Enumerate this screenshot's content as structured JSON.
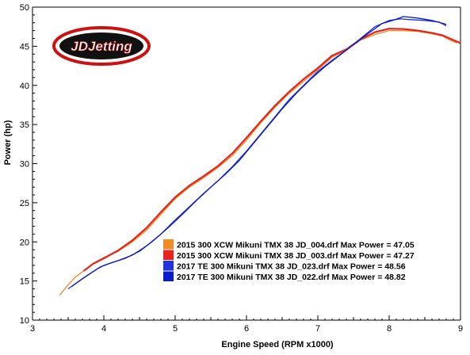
{
  "chart_data": {
    "type": "line",
    "title": "",
    "xlabel": "Engine Speed (RPM x1000)",
    "ylabel": "Power (hp)",
    "xlim": [
      3,
      9
    ],
    "ylim": [
      10,
      50
    ],
    "x_ticks": [
      "3",
      "4",
      "5",
      "6",
      "7",
      "8",
      "9"
    ],
    "y_ticks": [
      "10",
      "15",
      "20",
      "25",
      "30",
      "35",
      "40",
      "45",
      "50"
    ],
    "grid": false,
    "legend_position": "bottom-center",
    "logo_text": "JDJetting",
    "series": [
      {
        "name": "2015 300 XCW Mikuni TMX 38 JD_004.drf Max Power = 47.05",
        "color": "#f08a24",
        "points": [
          [
            3.38,
            13.2
          ],
          [
            3.5,
            14.5
          ],
          [
            3.6,
            15.5
          ],
          [
            3.75,
            16.5
          ],
          [
            3.9,
            17.5
          ],
          [
            4.0,
            18.0
          ],
          [
            4.2,
            18.8
          ],
          [
            4.4,
            20.0
          ],
          [
            4.6,
            21.5
          ],
          [
            4.8,
            23.5
          ],
          [
            5.0,
            25.5
          ],
          [
            5.2,
            27.0
          ],
          [
            5.4,
            28.2
          ],
          [
            5.6,
            29.5
          ],
          [
            5.8,
            31.0
          ],
          [
            6.0,
            33.0
          ],
          [
            6.2,
            35.2
          ],
          [
            6.4,
            37.2
          ],
          [
            6.6,
            39.0
          ],
          [
            6.8,
            40.5
          ],
          [
            7.0,
            42.0
          ],
          [
            7.2,
            43.6
          ],
          [
            7.4,
            44.5
          ],
          [
            7.6,
            45.8
          ],
          [
            7.8,
            46.5
          ],
          [
            8.0,
            47.0
          ],
          [
            8.2,
            47.0
          ],
          [
            8.4,
            46.9
          ],
          [
            8.6,
            46.6
          ],
          [
            8.75,
            46.3
          ],
          [
            8.85,
            45.8
          ],
          [
            8.95,
            45.4
          ]
        ]
      },
      {
        "name": "2015 300 XCW Mikuni TMX 38 JD_003.drf Max Power = 47.27",
        "color": "#e8231c",
        "points": [
          [
            3.72,
            16.3
          ],
          [
            3.85,
            17.2
          ],
          [
            4.0,
            17.9
          ],
          [
            4.2,
            18.9
          ],
          [
            4.4,
            20.2
          ],
          [
            4.6,
            21.8
          ],
          [
            4.8,
            23.8
          ],
          [
            5.0,
            25.7
          ],
          [
            5.2,
            27.2
          ],
          [
            5.4,
            28.4
          ],
          [
            5.6,
            29.7
          ],
          [
            5.8,
            31.3
          ],
          [
            6.0,
            33.3
          ],
          [
            6.2,
            35.4
          ],
          [
            6.4,
            37.4
          ],
          [
            6.6,
            39.2
          ],
          [
            6.8,
            40.8
          ],
          [
            7.0,
            42.2
          ],
          [
            7.2,
            43.8
          ],
          [
            7.4,
            44.6
          ],
          [
            7.6,
            45.9
          ],
          [
            7.8,
            46.8
          ],
          [
            8.0,
            47.25
          ],
          [
            8.2,
            47.2
          ],
          [
            8.4,
            47.0
          ],
          [
            8.6,
            46.7
          ],
          [
            8.75,
            46.4
          ],
          [
            8.9,
            45.8
          ],
          [
            9.0,
            45.4
          ]
        ]
      },
      {
        "name": "2017 TE 300 Mikuni TMX 38 JD_023.drf Max Power = 48.56",
        "color": "#2233dd",
        "points": [
          [
            3.5,
            14.0
          ],
          [
            3.7,
            15.3
          ],
          [
            3.9,
            16.5
          ],
          [
            4.0,
            17.0
          ],
          [
            4.2,
            17.6
          ],
          [
            4.4,
            18.3
          ],
          [
            4.6,
            19.5
          ],
          [
            4.8,
            21.0
          ],
          [
            5.0,
            22.8
          ],
          [
            5.2,
            24.5
          ],
          [
            5.4,
            26.2
          ],
          [
            5.6,
            27.8
          ],
          [
            5.8,
            29.6
          ],
          [
            6.0,
            31.6
          ],
          [
            6.2,
            33.8
          ],
          [
            6.4,
            36.0
          ],
          [
            6.6,
            38.2
          ],
          [
            6.8,
            40.0
          ],
          [
            7.0,
            41.8
          ],
          [
            7.2,
            43.2
          ],
          [
            7.4,
            44.5
          ],
          [
            7.6,
            46.0
          ],
          [
            7.8,
            47.5
          ],
          [
            8.0,
            48.3
          ],
          [
            8.15,
            48.5
          ],
          [
            8.3,
            48.4
          ],
          [
            8.5,
            48.3
          ],
          [
            8.7,
            48.1
          ],
          [
            8.8,
            47.6
          ]
        ]
      },
      {
        "name": "2017 TE 300 Mikuni TMX 38 JD_022.drf Max Power = 48.82",
        "color": "#0a1acc",
        "points": [
          [
            3.55,
            14.3
          ],
          [
            3.75,
            15.6
          ],
          [
            3.95,
            16.8
          ],
          [
            4.1,
            17.3
          ],
          [
            4.3,
            17.9
          ],
          [
            4.5,
            18.8
          ],
          [
            4.7,
            20.2
          ],
          [
            4.9,
            21.8
          ],
          [
            5.1,
            23.5
          ],
          [
            5.3,
            25.3
          ],
          [
            5.5,
            27.0
          ],
          [
            5.7,
            28.6
          ],
          [
            5.9,
            30.4
          ],
          [
            6.1,
            32.6
          ],
          [
            6.3,
            34.8
          ],
          [
            6.5,
            37.0
          ],
          [
            6.7,
            39.0
          ],
          [
            6.9,
            40.8
          ],
          [
            7.1,
            42.4
          ],
          [
            7.3,
            43.8
          ],
          [
            7.5,
            45.2
          ],
          [
            7.7,
            46.6
          ],
          [
            7.9,
            47.9
          ],
          [
            8.05,
            48.3
          ],
          [
            8.2,
            48.8
          ],
          [
            8.4,
            48.6
          ],
          [
            8.6,
            48.3
          ],
          [
            8.8,
            47.8
          ]
        ]
      }
    ]
  }
}
